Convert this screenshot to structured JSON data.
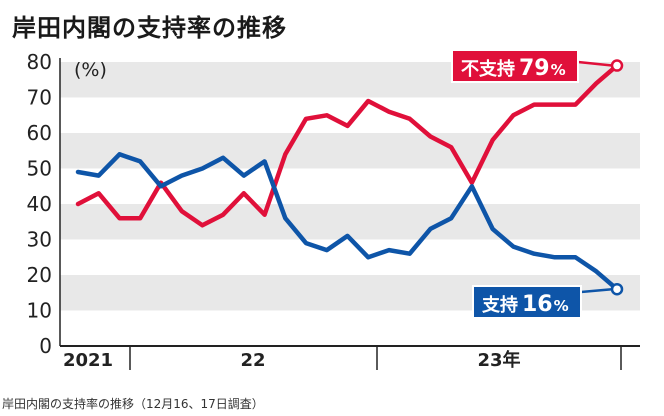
{
  "title": "岸田内閣の支持率の推移",
  "caption": "岸田内閣の支持率の推移（12月16、17日調査）",
  "colors": {
    "disapprove": "#e0103a",
    "approve": "#0e55a8",
    "band": "#e8e8e8",
    "axis": "#222222"
  },
  "chart_data": {
    "type": "line",
    "ylabel": "(%)",
    "ylim": [
      0,
      80
    ],
    "yticks": [
      0,
      10,
      20,
      30,
      40,
      50,
      60,
      70,
      80
    ],
    "x_period_labels": [
      "2021",
      "22",
      "23年"
    ],
    "grid_bands": true,
    "series": [
      {
        "name": "不支持",
        "callout_value": "79",
        "callout_unit": "%",
        "values": [
          40,
          43,
          36,
          36,
          46,
          38,
          34,
          37,
          43,
          37,
          54,
          64,
          65,
          62,
          69,
          66,
          64,
          59,
          56,
          46,
          58,
          65,
          68,
          68,
          68,
          74,
          79
        ]
      },
      {
        "name": "支持",
        "callout_value": "16",
        "callout_unit": "%",
        "values": [
          49,
          48,
          54,
          52,
          45,
          48,
          50,
          53,
          48,
          52,
          36,
          29,
          27,
          31,
          25,
          27,
          26,
          33,
          36,
          45,
          33,
          28,
          26,
          25,
          25,
          21,
          16
        ]
      }
    ]
  }
}
